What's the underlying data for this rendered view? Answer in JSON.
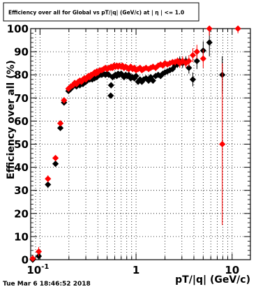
{
  "chart_data": {
    "type": "scatter",
    "title": "Efficiency over all for Global vs pT/|q| (GeV/c) at | η | <= 1.0",
    "xlabel": "pT/|q| (GeV/c)",
    "ylabel": "Efficiency over all (%)",
    "x_scale": "log",
    "xlim": [
      0.08,
      15.5
    ],
    "ylim": [
      0,
      100
    ],
    "grid": true,
    "x_tick_labels": [
      {
        "value": 0.1,
        "label": "10",
        "sup": "-1"
      },
      {
        "value": 1,
        "label": "1",
        "sup": ""
      },
      {
        "value": 10,
        "label": "10",
        "sup": ""
      }
    ],
    "y_ticks": [
      0,
      10,
      20,
      30,
      40,
      50,
      60,
      70,
      80,
      90,
      100
    ],
    "marker": "diamond",
    "series": [
      {
        "color": "#000000",
        "points": [
          [
            0.084,
            0,
            0
          ],
          [
            0.097,
            1.5,
            1.5
          ],
          [
            0.121,
            32.5,
            1.5
          ],
          [
            0.145,
            41.5,
            1.2
          ],
          [
            0.163,
            57,
            1.2
          ],
          [
            0.178,
            68,
            1.1
          ],
          [
            0.198,
            73,
            1
          ],
          [
            0.21,
            74,
            1
          ],
          [
            0.22,
            75,
            1
          ],
          [
            0.23,
            75.5,
            1
          ],
          [
            0.24,
            75,
            1
          ],
          [
            0.25,
            76,
            1
          ],
          [
            0.26,
            75.5,
            1
          ],
          [
            0.27,
            76.5,
            1
          ],
          [
            0.28,
            76,
            1
          ],
          [
            0.29,
            77,
            1
          ],
          [
            0.3,
            77,
            1
          ],
          [
            0.31,
            77.5,
            1
          ],
          [
            0.32,
            78,
            1
          ],
          [
            0.33,
            78,
            1
          ],
          [
            0.34,
            78.5,
            1
          ],
          [
            0.35,
            78,
            1
          ],
          [
            0.36,
            79,
            1
          ],
          [
            0.37,
            78.5,
            1
          ],
          [
            0.38,
            79,
            1
          ],
          [
            0.39,
            79,
            1
          ],
          [
            0.4,
            79.5,
            1
          ],
          [
            0.42,
            80,
            1
          ],
          [
            0.44,
            80,
            1
          ],
          [
            0.46,
            80.5,
            1
          ],
          [
            0.48,
            80,
            1
          ],
          [
            0.5,
            80.5,
            1
          ],
          [
            0.52,
            80,
            1
          ],
          [
            0.545,
            71,
            1
          ],
          [
            0.55,
            75.5,
            1
          ],
          [
            0.57,
            79,
            1
          ],
          [
            0.59,
            79.5,
            1
          ],
          [
            0.61,
            80,
            1
          ],
          [
            0.63,
            79.5,
            1
          ],
          [
            0.65,
            80.5,
            1
          ],
          [
            0.67,
            80,
            1
          ],
          [
            0.7,
            80.5,
            1
          ],
          [
            0.72,
            80,
            1
          ],
          [
            0.75,
            79,
            1
          ],
          [
            0.78,
            80,
            1
          ],
          [
            0.81,
            79.5,
            1
          ],
          [
            0.84,
            80,
            1
          ],
          [
            0.88,
            78.5,
            1
          ],
          [
            0.92,
            79,
            1
          ],
          [
            0.96,
            78.5,
            1
          ],
          [
            1.0,
            79.5,
            1
          ],
          [
            1.05,
            77,
            1
          ],
          [
            1.1,
            78,
            1
          ],
          [
            1.15,
            77,
            1
          ],
          [
            1.2,
            78,
            1
          ],
          [
            1.27,
            78.5,
            1
          ],
          [
            1.35,
            77.5,
            1
          ],
          [
            1.42,
            79,
            1
          ],
          [
            1.5,
            77.5,
            1
          ],
          [
            1.6,
            79.5,
            1
          ],
          [
            1.7,
            80,
            1
          ],
          [
            1.8,
            79.5,
            1
          ],
          [
            1.9,
            80.5,
            1
          ],
          [
            2.0,
            81,
            1
          ],
          [
            2.12,
            81.5,
            1
          ],
          [
            2.25,
            82,
            1
          ],
          [
            2.4,
            82.5,
            1
          ],
          [
            2.55,
            84,
            1.5
          ],
          [
            2.7,
            84.5,
            1.5
          ],
          [
            2.85,
            86,
            2
          ],
          [
            3.05,
            85,
            2
          ],
          [
            3.3,
            86,
            2
          ],
          [
            3.55,
            83,
            2.5
          ],
          [
            3.9,
            78,
            3
          ],
          [
            4.3,
            86,
            3.5
          ],
          [
            5.0,
            90.5,
            4
          ],
          [
            5.8,
            94,
            6
          ],
          [
            7.9,
            80,
            8
          ]
        ]
      },
      {
        "color": "#ff0000",
        "points": [
          [
            0.084,
            0.5,
            0.5
          ],
          [
            0.097,
            3.5,
            2
          ],
          [
            0.121,
            35,
            1.5
          ],
          [
            0.145,
            44,
            1.2
          ],
          [
            0.163,
            59,
            1.2
          ],
          [
            0.178,
            69,
            1.1
          ],
          [
            0.198,
            74,
            1
          ],
          [
            0.21,
            75,
            1
          ],
          [
            0.22,
            75.5,
            1
          ],
          [
            0.23,
            76.5,
            1
          ],
          [
            0.24,
            76,
            1
          ],
          [
            0.25,
            77,
            1
          ],
          [
            0.26,
            77.5,
            1
          ],
          [
            0.27,
            77,
            1
          ],
          [
            0.28,
            78,
            1
          ],
          [
            0.29,
            78.5,
            1
          ],
          [
            0.3,
            78,
            1
          ],
          [
            0.31,
            79,
            1
          ],
          [
            0.32,
            79.5,
            1
          ],
          [
            0.33,
            79,
            1
          ],
          [
            0.34,
            80,
            1
          ],
          [
            0.35,
            80,
            1
          ],
          [
            0.36,
            80.5,
            1
          ],
          [
            0.37,
            81,
            1
          ],
          [
            0.38,
            80.5,
            1
          ],
          [
            0.39,
            81.5,
            1
          ],
          [
            0.4,
            81,
            1
          ],
          [
            0.42,
            82,
            1
          ],
          [
            0.44,
            82,
            1
          ],
          [
            0.46,
            82.5,
            1
          ],
          [
            0.48,
            83,
            1
          ],
          [
            0.5,
            82.5,
            1
          ],
          [
            0.52,
            83,
            1
          ],
          [
            0.545,
            83,
            1
          ],
          [
            0.55,
            83.5,
            1
          ],
          [
            0.57,
            83,
            1
          ],
          [
            0.59,
            84,
            1
          ],
          [
            0.61,
            83.5,
            1
          ],
          [
            0.63,
            84,
            1
          ],
          [
            0.65,
            83.5,
            1
          ],
          [
            0.67,
            84,
            1
          ],
          [
            0.7,
            83.5,
            1
          ],
          [
            0.72,
            84,
            1
          ],
          [
            0.75,
            83,
            1
          ],
          [
            0.78,
            83.5,
            1
          ],
          [
            0.81,
            83,
            1
          ],
          [
            0.84,
            82.5,
            1
          ],
          [
            0.88,
            83.5,
            1
          ],
          [
            0.92,
            82.5,
            1
          ],
          [
            0.96,
            83,
            1
          ],
          [
            1.0,
            82,
            1
          ],
          [
            1.05,
            82.5,
            1
          ],
          [
            1.1,
            83,
            1
          ],
          [
            1.15,
            82,
            1
          ],
          [
            1.2,
            82.5,
            1
          ],
          [
            1.27,
            83,
            1
          ],
          [
            1.35,
            82.5,
            1
          ],
          [
            1.42,
            83,
            1
          ],
          [
            1.5,
            83.5,
            1
          ],
          [
            1.6,
            83,
            1
          ],
          [
            1.7,
            84,
            1
          ],
          [
            1.8,
            84.5,
            1
          ],
          [
            1.9,
            84,
            1
          ],
          [
            2.0,
            85,
            1
          ],
          [
            2.12,
            84.5,
            1
          ],
          [
            2.25,
            85,
            1
          ],
          [
            2.4,
            85.5,
            1
          ],
          [
            2.55,
            85.5,
            1.5
          ],
          [
            2.7,
            86,
            1.5
          ],
          [
            2.85,
            85,
            2
          ],
          [
            3.05,
            86,
            2
          ],
          [
            3.3,
            85,
            2
          ],
          [
            3.55,
            86,
            2.5
          ],
          [
            3.9,
            88.5,
            3
          ],
          [
            4.3,
            90,
            3
          ],
          [
            5.0,
            87,
            4
          ],
          [
            5.8,
            100,
            3
          ],
          [
            7.9,
            50,
            35
          ],
          [
            11.5,
            100,
            2
          ]
        ]
      }
    ]
  },
  "footer": {
    "timestamp": "Tue Mar  6 18:46:52 2018"
  }
}
